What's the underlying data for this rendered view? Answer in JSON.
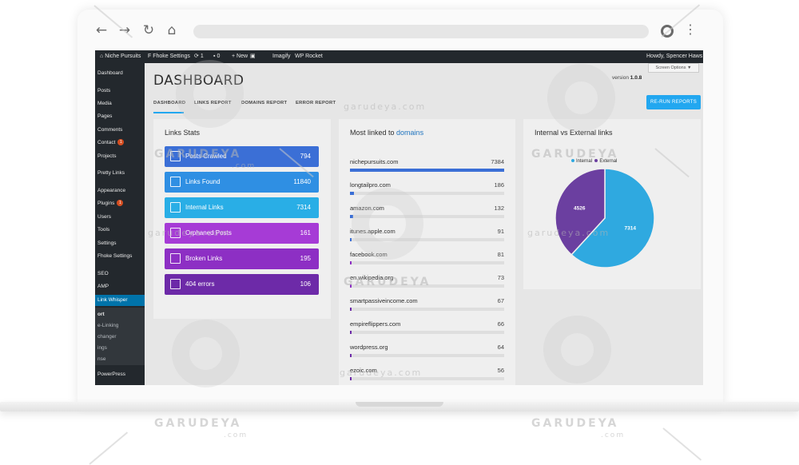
{
  "browser": {
    "icons": [
      "back-arrow-icon",
      "forward-arrow-icon",
      "reload-icon",
      "home-icon",
      "profile-icon",
      "kebab-menu-icon"
    ]
  },
  "adminbar": {
    "site": "Niche Pursuits",
    "fhoke": "Fhoke Settings",
    "updates_count": "1",
    "comments_count": "0",
    "new_label": "New",
    "imagify": "Imagify",
    "wp_rocket": "WP Rocket",
    "howdy": "Howdy, Spencer Haws"
  },
  "sidebar": {
    "items": [
      {
        "label": "Dashboard"
      },
      {
        "label": "Posts"
      },
      {
        "label": "Media"
      },
      {
        "label": "Pages"
      },
      {
        "label": "Comments"
      },
      {
        "label": "Contact",
        "badge": "1"
      },
      {
        "label": "Projects"
      },
      {
        "label": "Pretty Links"
      },
      {
        "label": "Appearance"
      },
      {
        "label": "Plugins",
        "badge": "1"
      },
      {
        "label": "Users"
      },
      {
        "label": "Tools"
      },
      {
        "label": "Settings"
      },
      {
        "label": "Fhoke Settings"
      },
      {
        "label": "SEO"
      },
      {
        "label": "AMP"
      },
      {
        "label": "Link Whisper"
      },
      {
        "label": "ort"
      },
      {
        "label": "e-Linking"
      },
      {
        "label": "changer"
      },
      {
        "label": "ings"
      },
      {
        "label": "nse"
      },
      {
        "label": "PowerPress"
      }
    ]
  },
  "header": {
    "title": "DASHBOARD",
    "screen_options": "Screen Options ▼",
    "version_label": "version",
    "version_value": "1.0.8",
    "rerun_label": "RE-RUN REPORTS"
  },
  "tabs": [
    "DASHBOARD",
    "LINKS REPORT",
    "DOMAINS REPORT",
    "ERROR REPORT"
  ],
  "links_stats": {
    "title": "Links Stats",
    "items": [
      {
        "label": "Posts Crawled",
        "value": "794",
        "color": "#3b6fd6",
        "icon": "document-icon"
      },
      {
        "label": "Links Found",
        "value": "11840",
        "color": "#2f8fe3",
        "icon": "link-icon"
      },
      {
        "label": "Internal Links",
        "value": "7314",
        "color": "#29aee6",
        "icon": "internal-link-icon"
      },
      {
        "label": "Orphaned Posts",
        "value": "161",
        "color": "#a63bd6",
        "icon": "copy-icon"
      },
      {
        "label": "Broken Links",
        "value": "195",
        "color": "#8d2fc4",
        "icon": "broken-link-icon"
      },
      {
        "label": "404 errors",
        "value": "106",
        "color": "#6d2aa8",
        "icon": "close-box-icon"
      }
    ]
  },
  "domains": {
    "title_prefix": "Most linked to",
    "title_link": "domains",
    "max": 7384,
    "rows": [
      {
        "name": "nichepursuits.com",
        "count": "7384",
        "value": 7384
      },
      {
        "name": "longtailpro.com",
        "count": "186",
        "value": 186
      },
      {
        "name": "amazon.com",
        "count": "132",
        "value": 132
      },
      {
        "name": "itunes.apple.com",
        "count": "91",
        "value": 91
      },
      {
        "name": "facebook.com",
        "count": "81",
        "value": 81
      },
      {
        "name": "en.wikipedia.org",
        "count": "73",
        "value": 73
      },
      {
        "name": "smartpassiveincome.com",
        "count": "67",
        "value": 67
      },
      {
        "name": "empireflippers.com",
        "count": "66",
        "value": 66
      },
      {
        "name": "wordpress.org",
        "count": "64",
        "value": 64
      },
      {
        "name": "ezoic.com",
        "count": "56",
        "value": 56
      }
    ]
  },
  "chart_data": {
    "type": "pie",
    "title": "Internal vs External links",
    "legend": "top",
    "series": [
      {
        "name": "Internal",
        "value": 7314,
        "label": "7314",
        "color": "#2fa9e0"
      },
      {
        "name": "External",
        "value": 4526,
        "label": "4526",
        "color": "#6b3fa0"
      }
    ]
  },
  "watermark": {
    "brand": "GARUDEYA",
    "domain": ".com",
    "inline": "garudeya.com"
  }
}
